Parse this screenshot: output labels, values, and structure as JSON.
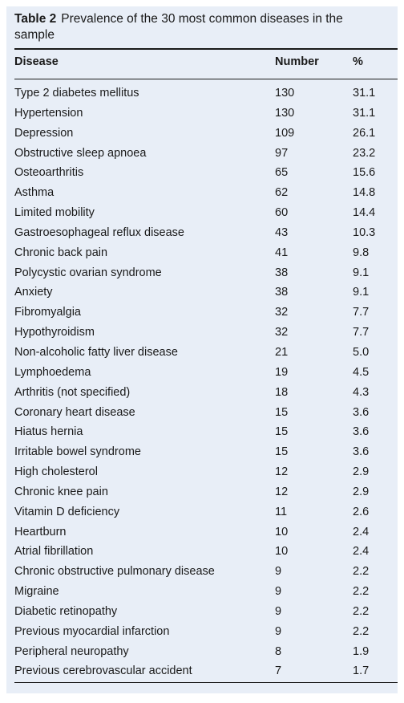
{
  "caption": {
    "label": "Table 2",
    "text": "Prevalence of the 30 most common diseases in the sample"
  },
  "columns": {
    "disease": "Disease",
    "number": "Number",
    "percent": "%"
  },
  "rows": [
    {
      "disease": "Type 2 diabetes mellitus",
      "number": "130",
      "percent": "31.1"
    },
    {
      "disease": "Hypertension",
      "number": "130",
      "percent": "31.1"
    },
    {
      "disease": "Depression",
      "number": "109",
      "percent": "26.1"
    },
    {
      "disease": "Obstructive sleep apnoea",
      "number": "97",
      "percent": "23.2"
    },
    {
      "disease": "Osteoarthritis",
      "number": "65",
      "percent": "15.6"
    },
    {
      "disease": "Asthma",
      "number": "62",
      "percent": "14.8"
    },
    {
      "disease": "Limited mobility",
      "number": "60",
      "percent": "14.4"
    },
    {
      "disease": "Gastroesophageal reflux disease",
      "number": "43",
      "percent": "10.3"
    },
    {
      "disease": "Chronic back pain",
      "number": "41",
      "percent": "9.8"
    },
    {
      "disease": "Polycystic ovarian syndrome",
      "number": "38",
      "percent": "9.1"
    },
    {
      "disease": "Anxiety",
      "number": "38",
      "percent": "9.1"
    },
    {
      "disease": "Fibromyalgia",
      "number": "32",
      "percent": "7.7"
    },
    {
      "disease": "Hypothyroidism",
      "number": "32",
      "percent": "7.7"
    },
    {
      "disease": "Non-alcoholic fatty liver disease",
      "number": "21",
      "percent": "5.0"
    },
    {
      "disease": "Lymphoedema",
      "number": "19",
      "percent": "4.5"
    },
    {
      "disease": "Arthritis (not specified)",
      "number": "18",
      "percent": "4.3"
    },
    {
      "disease": "Coronary heart disease",
      "number": "15",
      "percent": "3.6"
    },
    {
      "disease": "Hiatus hernia",
      "number": "15",
      "percent": "3.6"
    },
    {
      "disease": "Irritable bowel syndrome",
      "number": "15",
      "percent": "3.6"
    },
    {
      "disease": "High cholesterol",
      "number": "12",
      "percent": "2.9"
    },
    {
      "disease": "Chronic knee pain",
      "number": "12",
      "percent": "2.9"
    },
    {
      "disease": "Vitamin D deficiency",
      "number": "11",
      "percent": "2.6"
    },
    {
      "disease": "Heartburn",
      "number": "10",
      "percent": "2.4"
    },
    {
      "disease": "Atrial fibrillation",
      "number": "10",
      "percent": "2.4"
    },
    {
      "disease": "Chronic obstructive pulmonary disease",
      "number": "9",
      "percent": "2.2"
    },
    {
      "disease": "Migraine",
      "number": "9",
      "percent": "2.2"
    },
    {
      "disease": "Diabetic retinopathy",
      "number": "9",
      "percent": "2.2"
    },
    {
      "disease": "Previous myocardial infarction",
      "number": "9",
      "percent": "2.2"
    },
    {
      "disease": "Peripheral neuropathy",
      "number": "8",
      "percent": "1.9"
    },
    {
      "disease": "Previous cerebrovascular accident",
      "number": "7",
      "percent": "1.7"
    }
  ]
}
